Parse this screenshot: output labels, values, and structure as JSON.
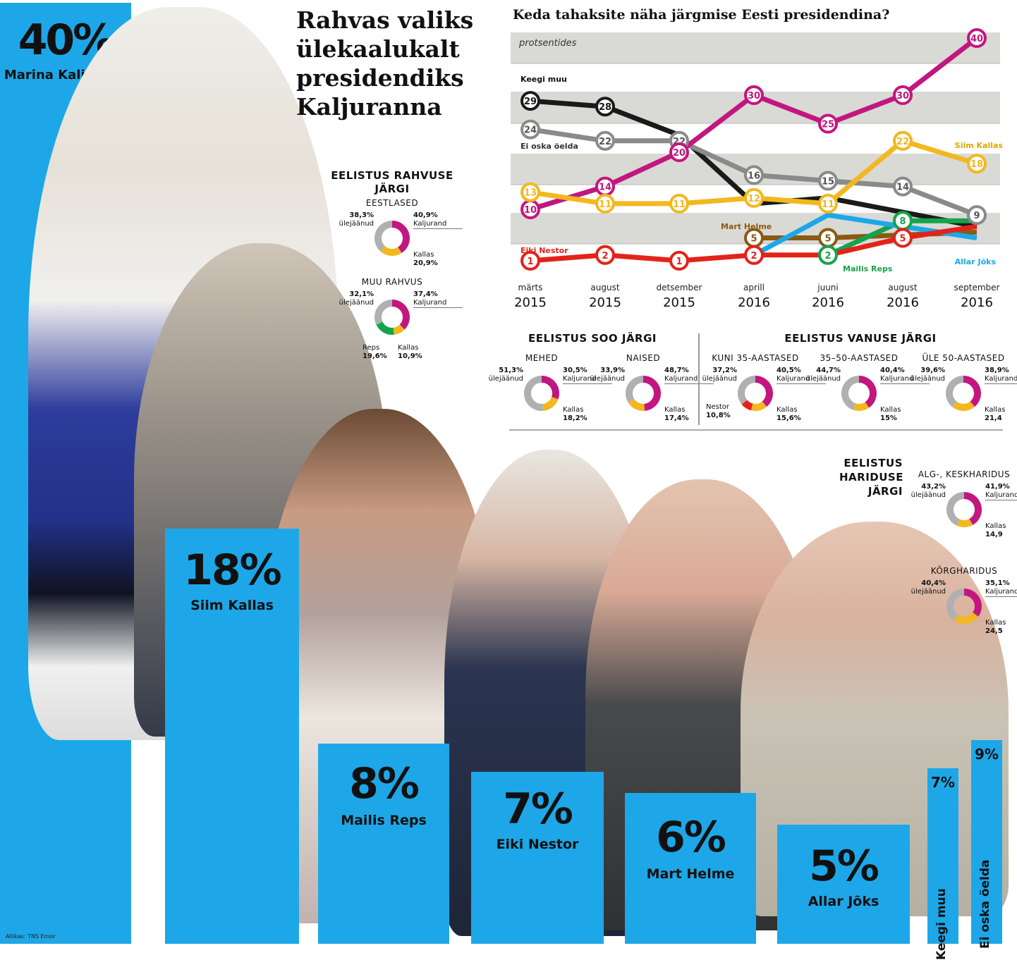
{
  "headline": {
    "line1": "Rahvas valiks",
    "line2": "ülekaalukalt",
    "line3": "presidendiks",
    "line4": "Kaljuranna"
  },
  "source": "Allikas: TNS Emor",
  "bars": [
    {
      "name": "Marina Kaljurand",
      "pct": "40%"
    },
    {
      "name": "Siim Kallas",
      "pct": "18%"
    },
    {
      "name": "Mailis Reps",
      "pct": "8%"
    },
    {
      "name": "Eiki Nestor",
      "pct": "7%"
    },
    {
      "name": "Mart Helme",
      "pct": "6%"
    },
    {
      "name": "Allar Jõks",
      "pct": "5%"
    },
    {
      "name": "Keegi muu",
      "pct": "7%"
    },
    {
      "name": "Ei oska öelda",
      "pct": "9%"
    }
  ],
  "chart_data": {
    "type": "line",
    "title": "Keda tahaksite näha järgmise Eesti presidendina?",
    "subtitle": "protsentides",
    "x": [
      "märts 2015",
      "august 2015",
      "detsember 2015",
      "aprill 2016",
      "juuni 2016",
      "august 2016",
      "september 2016"
    ],
    "x_month": [
      "märts",
      "august",
      "detsember",
      "aprill",
      "juuni",
      "august",
      "september"
    ],
    "x_year": [
      "2015",
      "2015",
      "2015",
      "2016",
      "2016",
      "2016",
      "2016"
    ],
    "series": [
      {
        "name": "Keegi muu",
        "color": "#1a1a1a",
        "values": [
          29,
          28,
          23,
          11,
          12,
          null,
          7
        ]
      },
      {
        "name": "Ei oska öelda",
        "color": "#8a8a8a",
        "values": [
          24,
          22,
          22,
          16,
          15,
          14,
          9
        ]
      },
      {
        "name": "Marina Kaljurand",
        "color": "#c2177f",
        "values": [
          10,
          14,
          20,
          30,
          25,
          30,
          40
        ]
      },
      {
        "name": "Siim Kallas",
        "color": "#f2b81e",
        "values": [
          13,
          11,
          11,
          12,
          11,
          22,
          18
        ]
      },
      {
        "name": "Mart Helme",
        "color": "#8a5a12",
        "values": [
          null,
          null,
          null,
          5,
          5,
          null,
          6
        ]
      },
      {
        "name": "Mailis Reps",
        "color": "#16a34a",
        "values": [
          null,
          null,
          null,
          null,
          2,
          8,
          8
        ]
      },
      {
        "name": "Allar Jõks",
        "color": "#1ba8e8",
        "values": [
          null,
          null,
          null,
          2,
          9,
          null,
          5
        ]
      },
      {
        "name": "Eiki Nestor",
        "color": "#e3231b",
        "values": [
          1,
          2,
          1,
          2,
          2,
          5,
          7
        ]
      }
    ]
  },
  "labels_in_chart": [
    {
      "text": "Marina Kaljurand",
      "color": "#c2177f"
    },
    {
      "text": "Keegi muu",
      "color": "#111111"
    },
    {
      "text": "Ei oska öelda",
      "color": "#333333"
    },
    {
      "text": "Siim Kallas",
      "color": "#e0a800"
    },
    {
      "text": "Mart Helme",
      "color": "#8a5a12"
    },
    {
      "text": "Eiki Nestor",
      "color": "#e3231b"
    },
    {
      "text": "Mailis Reps",
      "color": "#16a34a"
    },
    {
      "text": "Allar Jõks",
      "color": "#1ba8e8"
    }
  ],
  "nationality": {
    "title": "EELISTUS RAHVUSE\nJÄRGI",
    "title1": "EELISTUS RAHVUSE",
    "title2": "JÄRGI",
    "groups": [
      {
        "label": "EESTLASED",
        "rest": "38,3%",
        "rest_label": "ülejäänud",
        "kal": "40,9%",
        "kal_label": "Kaljurand",
        "kallas_label": "Kallas",
        "kallas": "20,9%",
        "slices": [
          40.9,
          20.9,
          38.3
        ]
      },
      {
        "label": "MUU RAHVUS",
        "rest": "32,1%",
        "rest_label": "ülejäänud",
        "kal": "37,4%",
        "kal_label": "Kaljurand",
        "reps_label": "Reps",
        "reps": "19,6%",
        "kallas_label": "Kallas",
        "kallas": "10,9%",
        "slices": [
          37.4,
          10.9,
          19.6,
          32.1
        ]
      }
    ]
  },
  "gender": {
    "title": "EELISTUS SOO JÄRGI",
    "groups": [
      {
        "label": "MEHED",
        "rest": "51,3%",
        "rest_label": "ülejäänud",
        "kal": "30,5%",
        "kal_label": "Kaljurand",
        "kallas_label": "Kallas",
        "kallas": "18,2%",
        "slices": [
          30.5,
          18.2,
          51.3
        ]
      },
      {
        "label": "NAISED",
        "rest": "33,9%",
        "rest_label": "ülejäänud",
        "kal": "48,7%",
        "kal_label": "Kaljurand",
        "kallas_label": "Kallas",
        "kallas": "17,4%",
        "slices": [
          48.7,
          17.4,
          33.9
        ]
      }
    ]
  },
  "age": {
    "title": "EELISTUS VANUSE JÄRGI",
    "groups": [
      {
        "label": "KUNI 35-AASTASED",
        "rest": "37,2%",
        "rest_label": "ülejäänud",
        "kal": "40,5%",
        "kal_label": "Kaljurand",
        "kallas_label": "Kallas",
        "kallas": "15,6%",
        "nestor_label": "Nestor",
        "nestor": "10,8%",
        "slices": [
          40.5,
          15.6,
          10.8,
          37.2
        ]
      },
      {
        "label": "35–50-AASTASED",
        "rest": "44,7%",
        "rest_label": "ülejäänud",
        "kal": "40,4%",
        "kal_label": "Kaljurand",
        "kallas_label": "Kallas",
        "kallas": "15%",
        "slices": [
          40.4,
          15,
          44.7
        ]
      },
      {
        "label": "ÜLE 50-AASTASED",
        "rest": "39,6%",
        "rest_label": "ülejäänud",
        "kal": "38,9%",
        "kal_label": "Kaljurand",
        "kallas_label": "Kallas",
        "kallas": "21,4",
        "slices": [
          38.9,
          21.4,
          39.6
        ]
      }
    ]
  },
  "education": {
    "title1": "EELISTUS",
    "title2": "HARIDUSE",
    "title3": "JÄRGI",
    "groups": [
      {
        "label": "ALG-, KESKHARIDUS",
        "rest": "43,2%",
        "rest_label": "ülejäänud",
        "kal": "41,9%",
        "kal_label": "Kaljurand",
        "kallas_label": "Kallas",
        "kallas": "14,9",
        "slices": [
          41.9,
          14.9,
          43.2
        ]
      },
      {
        "label": "KÕRGHARIDUS",
        "rest": "40,4%",
        "rest_label": "ülejäänud",
        "kal": "35,1%",
        "kal_label": "Kaljurand",
        "kallas_label": "Kallas",
        "kallas": "24,5",
        "slices": [
          35.1,
          24.5,
          40.4
        ]
      }
    ]
  },
  "colors": {
    "blue": "#1da7e8",
    "magenta": "#c2177f",
    "yellow": "#f2b81e",
    "gray": "#b0b0b0",
    "green": "#16a34a",
    "red": "#e3231b"
  }
}
